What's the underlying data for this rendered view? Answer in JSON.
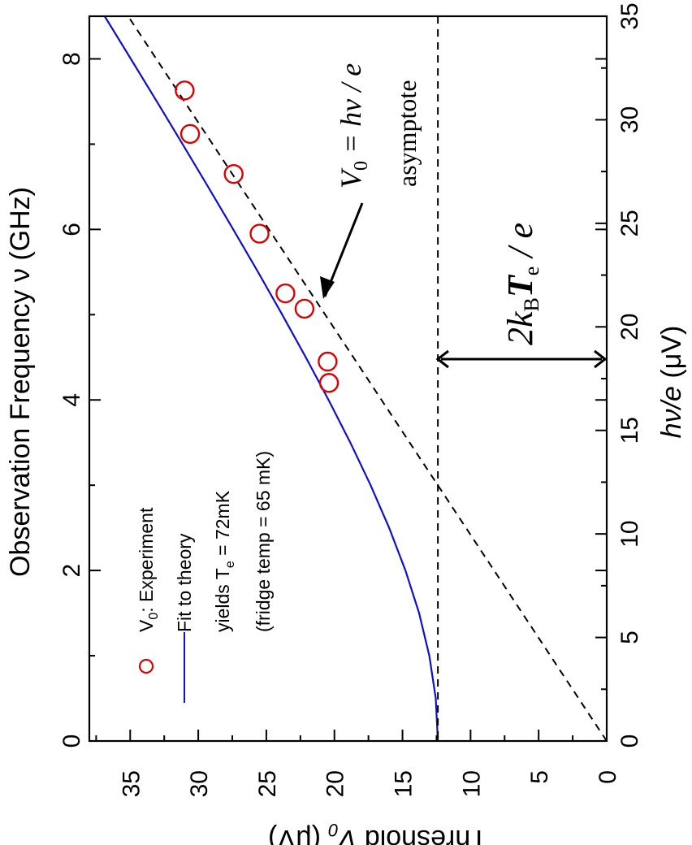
{
  "chart_data": {
    "type": "scatter",
    "orientation": "rotated 90 degrees counter-clockwise",
    "axes": {
      "frequency": {
        "label": "Observation Frequency ν (GHz)",
        "range": [
          0,
          8.5
        ],
        "ticks": [
          "0",
          "2",
          "4",
          "6",
          "8"
        ],
        "tick_values": [
          0,
          2,
          4,
          6,
          8
        ]
      },
      "threshold": {
        "label_prefix": "Threshold ",
        "label_var": "V",
        "label_sub": "0",
        "label_suffix": " (μV)",
        "range": [
          0,
          38
        ],
        "ticks": [
          "35",
          "30",
          "25",
          "20",
          "15",
          "10",
          "5",
          "0"
        ],
        "tick_values": [
          35,
          30,
          25,
          20,
          15,
          10,
          5,
          0
        ]
      },
      "hv_over_e": {
        "label_var": "hν/e",
        "label_suffix": " (μV)",
        "range": [
          0,
          35
        ],
        "ticks": [
          "0",
          "5",
          "10",
          "15",
          "20",
          "25",
          "30",
          "35"
        ],
        "tick_values": [
          0,
          5,
          10,
          15,
          20,
          25,
          30,
          35
        ]
      }
    },
    "series": [
      {
        "name": "V0 : Experiment",
        "kind": "markers",
        "color": "#dd0000",
        "points": [
          {
            "frequency": 7.63,
            "threshold": 31.0
          },
          {
            "frequency": 7.12,
            "threshold": 30.6
          },
          {
            "frequency": 6.65,
            "threshold": 27.4
          },
          {
            "frequency": 5.95,
            "threshold": 25.5
          },
          {
            "frequency": 5.25,
            "threshold": 23.6
          },
          {
            "frequency": 5.07,
            "threshold": 22.2
          },
          {
            "frequency": 4.45,
            "threshold": 20.5
          },
          {
            "frequency": 4.2,
            "threshold": 20.4
          }
        ]
      },
      {
        "name": "Fit to theory",
        "kind": "line",
        "color": "#1010cc",
        "offset": 12.4,
        "points": [
          {
            "frequency": 0.0,
            "threshold": 12.4
          },
          {
            "frequency": 0.5,
            "threshold": 12.56
          },
          {
            "frequency": 1.0,
            "threshold": 13.03
          },
          {
            "frequency": 1.5,
            "threshold": 13.78
          },
          {
            "frequency": 2.0,
            "threshold": 14.78
          },
          {
            "frequency": 2.5,
            "threshold": 15.98
          },
          {
            "frequency": 3.0,
            "threshold": 17.34
          },
          {
            "frequency": 3.5,
            "threshold": 18.83
          },
          {
            "frequency": 4.0,
            "threshold": 20.43
          },
          {
            "frequency": 4.5,
            "threshold": 22.1
          },
          {
            "frequency": 5.0,
            "threshold": 23.83
          },
          {
            "frequency": 5.5,
            "threshold": 25.61
          },
          {
            "frequency": 6.0,
            "threshold": 27.43
          },
          {
            "frequency": 6.5,
            "threshold": 29.28
          },
          {
            "frequency": 7.0,
            "threshold": 31.15
          },
          {
            "frequency": 7.5,
            "threshold": 33.04
          },
          {
            "frequency": 8.0,
            "threshold": 34.95
          },
          {
            "frequency": 8.5,
            "threshold": 36.87
          }
        ]
      },
      {
        "name": "V0 = hν / e asymptote",
        "kind": "dashed-line",
        "color": "#000000",
        "points": [
          {
            "frequency": 0.0,
            "threshold": 0.0
          },
          {
            "frequency": 8.5,
            "threshold": 35.15
          }
        ]
      },
      {
        "name": "threshold level",
        "kind": "dashed-line",
        "color": "#000000",
        "threshold": 12.4
      }
    ],
    "legend": {
      "position": "bottom-left",
      "experiment_var": "V",
      "experiment_sub": "0",
      "experiment_label": ": Experiment",
      "fit_label": "Fit to theory",
      "yields_prefix": "yields T",
      "yields_sub": "e",
      "yields_suffix": " = 72mK",
      "fridge_note": "(fridge temp = 65 mK)"
    },
    "annotations": {
      "asymptote_eq_var": "V",
      "asymptote_eq_sub": "0",
      "asymptote_eq_rest": " = hν / e",
      "asymptote_word": "asymptote",
      "gap_prefix": "2k",
      "gap_sub_b": "B",
      "gap_t": "T",
      "gap_sub_e": "e",
      "gap_suffix": " / e",
      "gap_range": [
        12.4,
        0
      ]
    },
    "grid": false
  }
}
